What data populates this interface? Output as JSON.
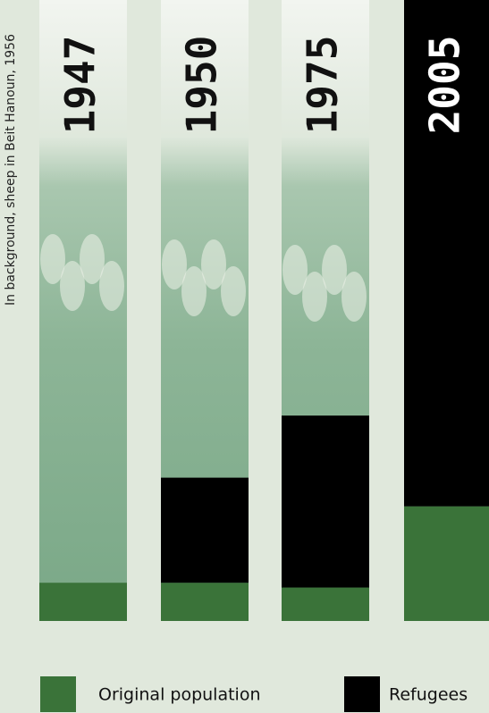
{
  "chart_data": {
    "type": "stacked_bar",
    "annotation": "In background, sheep in Beit Hanoun, 1956",
    "categories": [
      "1947",
      "1950",
      "1975",
      "2005"
    ],
    "series": [
      {
        "name": "Original population",
        "color": "#3a7339",
        "values": [
          80,
          80,
          70,
          240
        ]
      },
      {
        "name": "Refugees",
        "color": "#000000",
        "values": [
          0,
          220,
          360,
          1060
        ]
      }
    ],
    "ylim": [
      0,
      1300
    ]
  }
}
